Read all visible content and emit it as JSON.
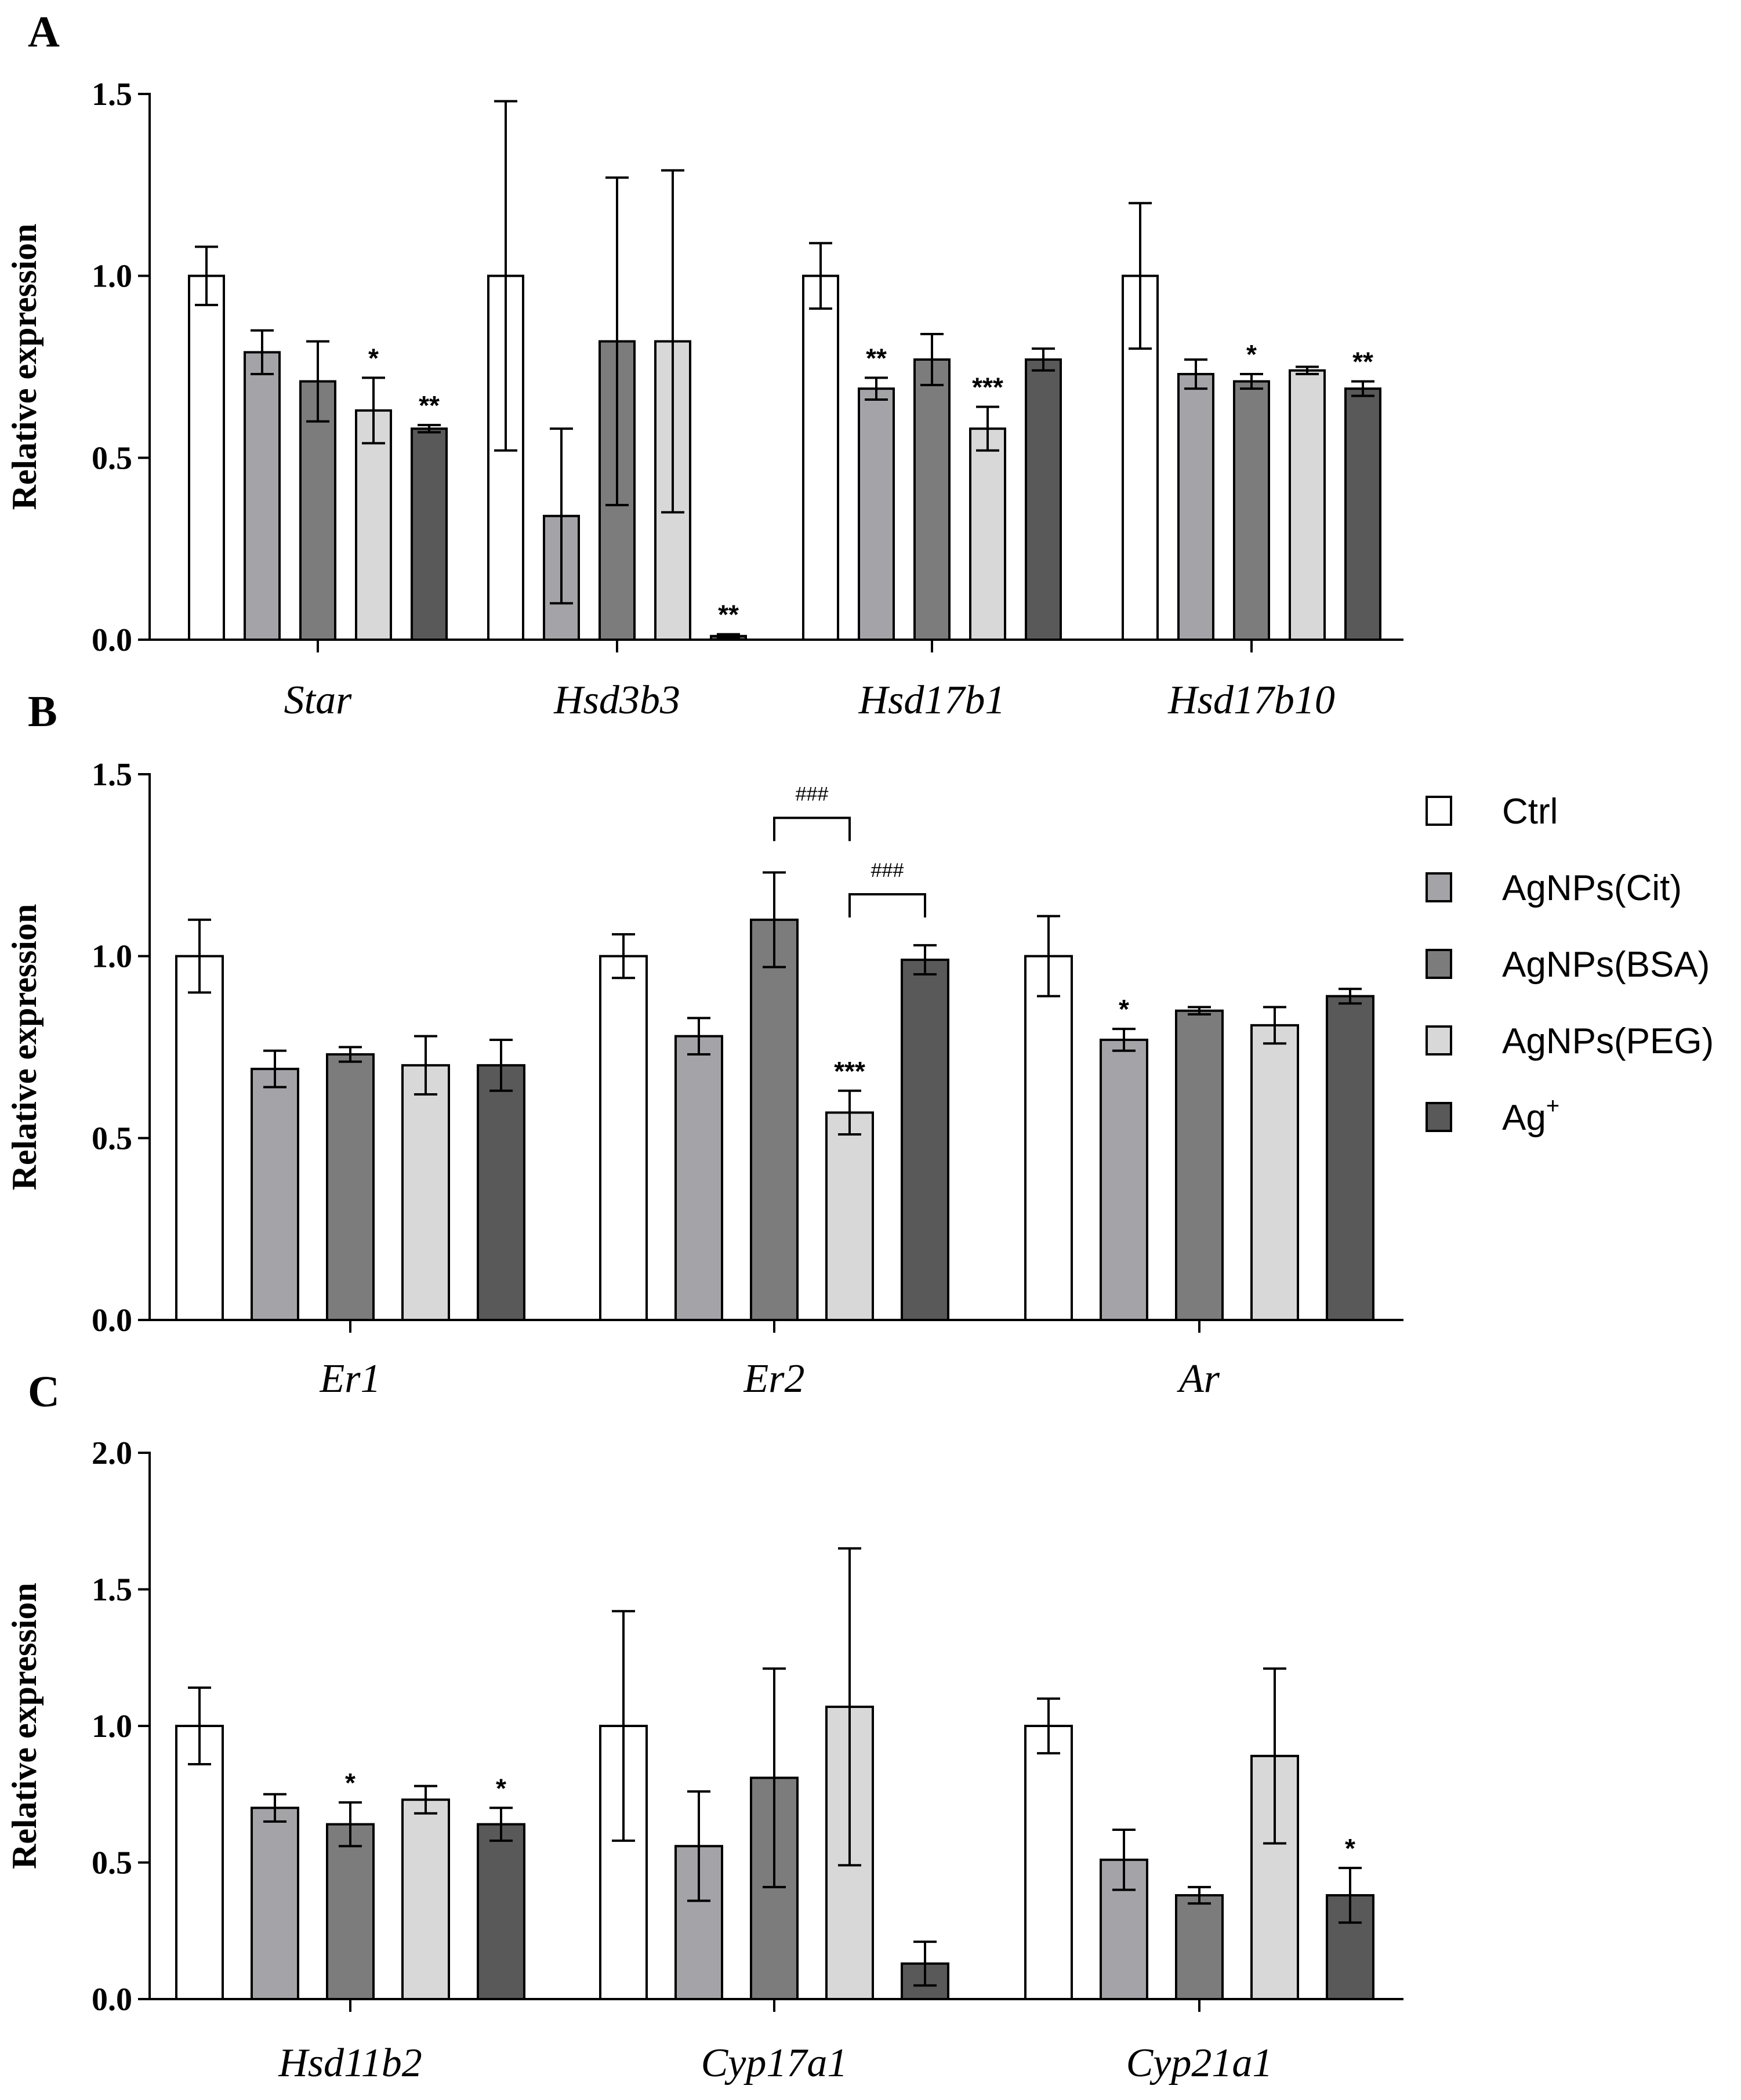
{
  "legend": {
    "items": [
      {
        "label": "Ctrl",
        "color": "#ffffff"
      },
      {
        "label": "AgNPs(Cit)",
        "color": "#a4a4a8"
      },
      {
        "label": "AgNPs(BSA)",
        "color": "#7c7c7c"
      },
      {
        "label": "AgNPs(PEG)",
        "color": "#d8d8d8"
      },
      {
        "label": "Ag",
        "superscript": "+",
        "color": "#595959"
      }
    ]
  },
  "chart_data": [
    {
      "panel": "A",
      "type": "bar",
      "ylabel": "Relative expression",
      "ylim": [
        0,
        1.5
      ],
      "yticks": [
        "0.0",
        "0.5",
        "1.0",
        "1.5"
      ],
      "categories": [
        "Star",
        "Hsd3b3",
        "Hsd17b1",
        "Hsd17b10"
      ],
      "series": [
        {
          "name": "Ctrl",
          "values": [
            1.0,
            1.0,
            1.0,
            1.0
          ],
          "errors": [
            0.08,
            0.48,
            0.09,
            0.2
          ],
          "sig": [
            "",
            "",
            "",
            ""
          ]
        },
        {
          "name": "AgNPs(Cit)",
          "values": [
            0.79,
            0.34,
            0.69,
            0.73
          ],
          "errors": [
            0.06,
            0.24,
            0.03,
            0.04
          ],
          "sig": [
            "",
            "",
            "**",
            ""
          ]
        },
        {
          "name": "AgNPs(BSA)",
          "values": [
            0.71,
            0.82,
            0.77,
            0.71
          ],
          "errors": [
            0.11,
            0.45,
            0.07,
            0.02
          ],
          "sig": [
            "",
            "",
            "",
            "*"
          ]
        },
        {
          "name": "AgNPs(PEG)",
          "values": [
            0.63,
            0.82,
            0.58,
            0.74
          ],
          "errors": [
            0.09,
            0.47,
            0.06,
            0.01
          ],
          "sig": [
            "*",
            "",
            "***",
            ""
          ]
        },
        {
          "name": "Ag+",
          "values": [
            0.58,
            0.01,
            0.77,
            0.69
          ],
          "errors": [
            0.01,
            0.005,
            0.03,
            0.02
          ],
          "sig": [
            "**",
            "**",
            "",
            "**"
          ]
        }
      ],
      "brackets": []
    },
    {
      "panel": "B",
      "type": "bar",
      "ylabel": "Relative expression",
      "ylim": [
        0,
        1.5
      ],
      "yticks": [
        "0.0",
        "0.5",
        "1.0",
        "1.5"
      ],
      "categories": [
        "Er1",
        "Er2",
        "Ar"
      ],
      "series": [
        {
          "name": "Ctrl",
          "values": [
            1.0,
            1.0,
            1.0
          ],
          "errors": [
            0.1,
            0.06,
            0.11
          ],
          "sig": [
            "",
            "",
            ""
          ]
        },
        {
          "name": "AgNPs(Cit)",
          "values": [
            0.69,
            0.78,
            0.77
          ],
          "errors": [
            0.05,
            0.05,
            0.03
          ],
          "sig": [
            "",
            "",
            "*"
          ]
        },
        {
          "name": "AgNPs(BSA)",
          "values": [
            0.73,
            1.1,
            0.85
          ],
          "errors": [
            0.02,
            0.13,
            0.01
          ],
          "sig": [
            "",
            "",
            ""
          ]
        },
        {
          "name": "AgNPs(PEG)",
          "values": [
            0.7,
            0.57,
            0.81
          ],
          "errors": [
            0.08,
            0.06,
            0.05
          ],
          "sig": [
            "",
            "***",
            ""
          ]
        },
        {
          "name": "Ag+",
          "values": [
            0.7,
            0.99,
            0.89
          ],
          "errors": [
            0.07,
            0.04,
            0.02
          ],
          "sig": [
            "",
            "",
            ""
          ]
        }
      ],
      "brackets": [
        {
          "category": 1,
          "from": 2,
          "to": 3,
          "y": 1.38,
          "label": "###"
        },
        {
          "category": 1,
          "from": 3,
          "to": 4,
          "y": 1.17,
          "label": "###"
        }
      ]
    },
    {
      "panel": "C",
      "type": "bar",
      "ylabel": "Relative expression",
      "ylim": [
        0,
        2.0
      ],
      "yticks": [
        "0.0",
        "0.5",
        "1.0",
        "1.5",
        "2.0"
      ],
      "categories": [
        "Hsd11b2",
        "Cyp17a1",
        "Cyp21a1"
      ],
      "series": [
        {
          "name": "Ctrl",
          "values": [
            1.0,
            1.0,
            1.0
          ],
          "errors": [
            0.14,
            0.42,
            0.1
          ],
          "sig": [
            "",
            "",
            ""
          ]
        },
        {
          "name": "AgNPs(Cit)",
          "values": [
            0.7,
            0.56,
            0.51
          ],
          "errors": [
            0.05,
            0.2,
            0.11
          ],
          "sig": [
            "",
            "",
            ""
          ]
        },
        {
          "name": "AgNPs(BSA)",
          "values": [
            0.64,
            0.81,
            0.38
          ],
          "errors": [
            0.08,
            0.4,
            0.03
          ],
          "sig": [
            "*",
            "",
            ""
          ]
        },
        {
          "name": "AgNPs(PEG)",
          "values": [
            0.73,
            1.07,
            0.89
          ],
          "errors": [
            0.05,
            0.58,
            0.32
          ],
          "sig": [
            "",
            "",
            ""
          ]
        },
        {
          "name": "Ag+",
          "values": [
            0.64,
            0.13,
            0.38
          ],
          "errors": [
            0.06,
            0.08,
            0.1
          ],
          "sig": [
            "*",
            "",
            "*"
          ]
        }
      ],
      "brackets": []
    }
  ]
}
